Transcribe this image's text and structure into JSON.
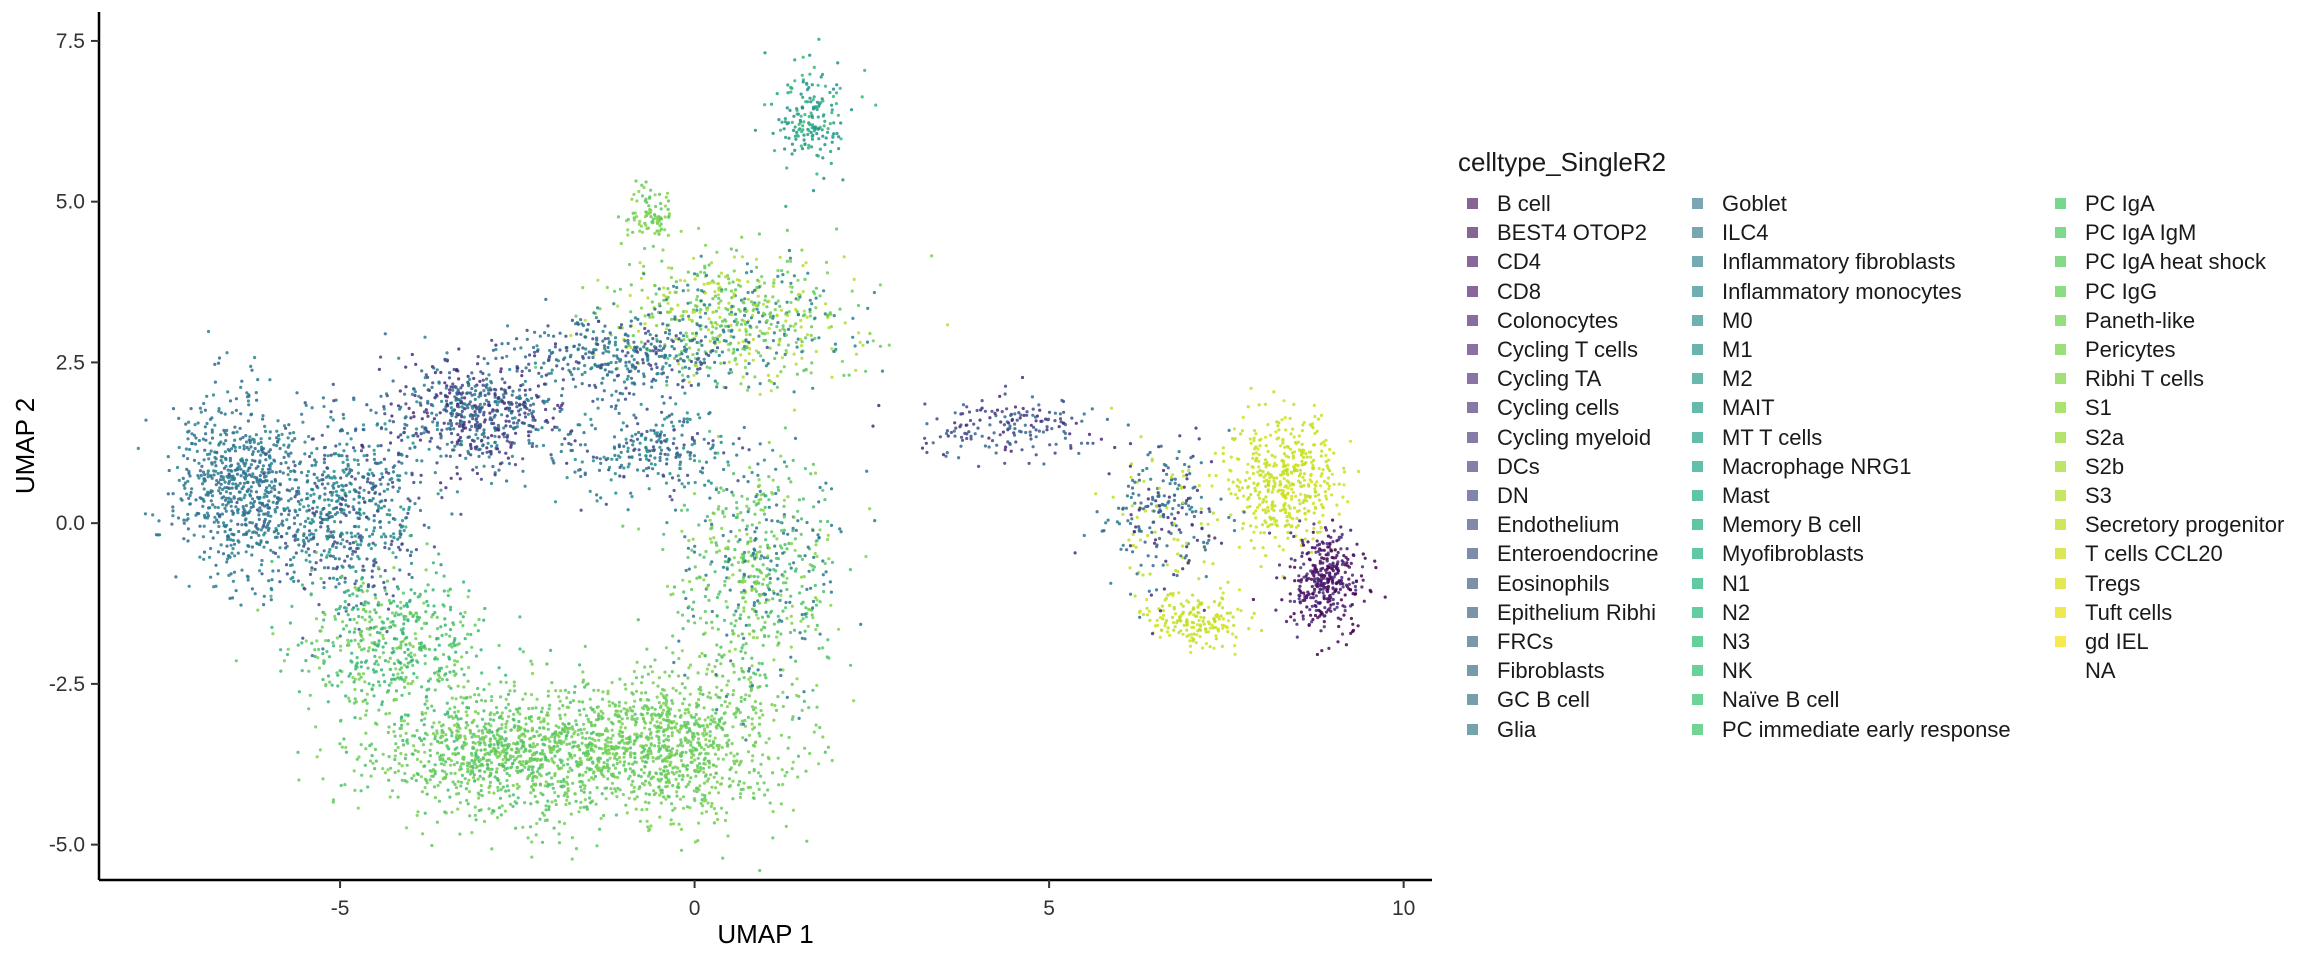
{
  "chart_data": {
    "type": "scatter",
    "xlabel": "UMAP 1",
    "ylabel": "UMAP 2",
    "xlim": [
      -8.4,
      10.4
    ],
    "ylim": [
      -5.55,
      7.95
    ],
    "x_ticks": [
      {
        "value": -5,
        "label": "-5"
      },
      {
        "value": 0,
        "label": "0"
      },
      {
        "value": 5,
        "label": "5"
      },
      {
        "value": 10,
        "label": "10"
      }
    ],
    "y_ticks": [
      {
        "value": -5,
        "label": "-5.0"
      },
      {
        "value": -2.5,
        "label": "-2.5"
      },
      {
        "value": 0,
        "label": "0.0"
      },
      {
        "value": 2.5,
        "label": "2.5"
      },
      {
        "value": 5,
        "label": "5.0"
      },
      {
        "value": 7.5,
        "label": "7.5"
      }
    ],
    "grid": false,
    "legend_position": "right",
    "legend_title": "celltype_SingleR2",
    "clusters": [
      {
        "center": [
          -6.4,
          0.6
        ],
        "spread": [
          0.75,
          1.1
        ],
        "colors": [
          "#26828e",
          "#2a788e",
          "#31688e"
        ],
        "weight": 0.08
      },
      {
        "center": [
          -4.9,
          0.2
        ],
        "spread": [
          0.9,
          1.2
        ],
        "colors": [
          "#2a788e",
          "#21908d",
          "#3e4a89"
        ],
        "weight": 0.07
      },
      {
        "center": [
          -3.1,
          1.7
        ],
        "spread": [
          1.0,
          0.7
        ],
        "colors": [
          "#31688e",
          "#26828e",
          "#472d7b",
          "#3e4a89"
        ],
        "weight": 0.07
      },
      {
        "center": [
          -2.5,
          -3.6
        ],
        "spread": [
          1.6,
          0.75
        ],
        "colors": [
          "#5ec962",
          "#6ece58",
          "#7ad151",
          "#4ac16d"
        ],
        "weight": 0.13
      },
      {
        "center": [
          -0.3,
          -3.4
        ],
        "spread": [
          1.3,
          1.0
        ],
        "colors": [
          "#5ec962",
          "#7ad151",
          "#6ece58"
        ],
        "weight": 0.1
      },
      {
        "center": [
          0.9,
          -0.9
        ],
        "spread": [
          0.9,
          1.5
        ],
        "colors": [
          "#5ec962",
          "#4ac16d",
          "#86d549",
          "#2a788e"
        ],
        "weight": 0.07
      },
      {
        "center": [
          -4.2,
          -1.9
        ],
        "spread": [
          1.1,
          0.9
        ],
        "colors": [
          "#3fbc73",
          "#5ec962",
          "#35b779",
          "#7ad151"
        ],
        "weight": 0.06
      },
      {
        "center": [
          0.6,
          3.2
        ],
        "spread": [
          1.4,
          0.8
        ],
        "colors": [
          "#5ec962",
          "#b5de2b",
          "#26828e",
          "#7ad151"
        ],
        "weight": 0.07
      },
      {
        "center": [
          -1.0,
          2.6
        ],
        "spread": [
          1.2,
          0.5
        ],
        "colors": [
          "#31688e",
          "#26828e",
          "#3e4a89"
        ],
        "weight": 0.04
      },
      {
        "center": [
          -0.6,
          1.1
        ],
        "spread": [
          1.0,
          0.6
        ],
        "colors": [
          "#2a788e",
          "#21908d",
          "#3e4a89"
        ],
        "weight": 0.03
      },
      {
        "center": [
          1.6,
          6.3
        ],
        "spread": [
          0.4,
          0.7
        ],
        "colors": [
          "#21a585",
          "#35b779",
          "#21908d"
        ],
        "weight": 0.02
      },
      {
        "center": [
          -0.6,
          4.8
        ],
        "spread": [
          0.3,
          0.3
        ],
        "colors": [
          "#86d549",
          "#5ec962"
        ],
        "weight": 0.01
      },
      {
        "center": [
          4.4,
          1.5
        ],
        "spread": [
          1.0,
          0.4
        ],
        "colors": [
          "#31688e",
          "#3e4a89",
          "#482878"
        ],
        "weight": 0.02
      },
      {
        "center": [
          8.3,
          0.7
        ],
        "spread": [
          0.6,
          0.8
        ],
        "colors": [
          "#bddf26",
          "#d2e21b",
          "#c8e020"
        ],
        "weight": 0.05
      },
      {
        "center": [
          8.9,
          -0.9
        ],
        "spread": [
          0.45,
          0.6
        ],
        "colors": [
          "#440154",
          "#472d7b",
          "#481467"
        ],
        "weight": 0.04
      },
      {
        "center": [
          7.1,
          -1.5
        ],
        "spread": [
          0.6,
          0.35
        ],
        "colors": [
          "#d2e21b",
          "#bddf26"
        ],
        "weight": 0.02
      },
      {
        "center": [
          6.6,
          0.2
        ],
        "spread": [
          0.7,
          0.9
        ],
        "colors": [
          "#31688e",
          "#472d7b",
          "#bddf26",
          "#2a788e"
        ],
        "weight": 0.03
      }
    ],
    "legend": [
      {
        "label": "B cell",
        "color": "#866593"
      },
      {
        "label": "BEST4 OTOP2",
        "color": "#866593"
      },
      {
        "label": "CD4",
        "color": "#88689a"
      },
      {
        "label": "CD8",
        "color": "#88689a"
      },
      {
        "label": "Colonocytes",
        "color": "#896d9f"
      },
      {
        "label": "Cycling T cells",
        "color": "#8a70a3"
      },
      {
        "label": "Cycling TA",
        "color": "#8a74a5"
      },
      {
        "label": "Cycling cells",
        "color": "#8878a6"
      },
      {
        "label": "Cycling myeloid",
        "color": "#877ca8"
      },
      {
        "label": "DCs",
        "color": "#8580a8"
      },
      {
        "label": "DN",
        "color": "#8384a9"
      },
      {
        "label": "Endothelium",
        "color": "#8188a9"
      },
      {
        "label": "Enteroendocrine",
        "color": "#7f8ca9"
      },
      {
        "label": "Eosinophils",
        "color": "#7d90a9"
      },
      {
        "label": "Epithelium Ribhi",
        "color": "#7c94aa"
      },
      {
        "label": "FRCs",
        "color": "#7a98aa"
      },
      {
        "label": "Fibroblasts",
        "color": "#789baa"
      },
      {
        "label": "GC B cell",
        "color": "#779faa"
      },
      {
        "label": "Glia",
        "color": "#75a3ab"
      },
      {
        "label": "Goblet",
        "color": "#7aa5b3"
      },
      {
        "label": "ILC4",
        "color": "#77a8b2"
      },
      {
        "label": "Inflammatory fibroblasts",
        "color": "#74abb1"
      },
      {
        "label": "Inflammatory monocytes",
        "color": "#71aeb0"
      },
      {
        "label": "M0",
        "color": "#6eb1af"
      },
      {
        "label": "M1",
        "color": "#6bb4ae"
      },
      {
        "label": "M2",
        "color": "#69b7ad"
      },
      {
        "label": "MAIT",
        "color": "#66baac"
      },
      {
        "label": "MT T cells",
        "color": "#64bdab"
      },
      {
        "label": "Macrophage NRG1",
        "color": "#62c0aa"
      },
      {
        "label": "Mast",
        "color": "#61c3a8"
      },
      {
        "label": "Memory B cell",
        "color": "#60c5a6"
      },
      {
        "label": "Myofibroblasts",
        "color": "#60c8a4"
      },
      {
        "label": "N1",
        "color": "#61caa2"
      },
      {
        "label": "N2",
        "color": "#63cd9f"
      },
      {
        "label": "N3",
        "color": "#66cf9c"
      },
      {
        "label": "NK",
        "color": "#69d199"
      },
      {
        "label": "Naïve B cell",
        "color": "#6dd396"
      },
      {
        "label": "PC  immediate early response",
        "color": "#72d593"
      },
      {
        "label": "PC IgA",
        "color": "#77d78f"
      },
      {
        "label": "PC IgA IgM",
        "color": "#7dd98b"
      },
      {
        "label": "PC IgA heat shock",
        "color": "#83db87"
      },
      {
        "label": "PC IgG",
        "color": "#8add83"
      },
      {
        "label": "Paneth-like",
        "color": "#92df7e"
      },
      {
        "label": "Pericytes",
        "color": "#9ae07a"
      },
      {
        "label": "Ribhi T cells",
        "color": "#a2e275"
      },
      {
        "label": "S1",
        "color": "#abe370"
      },
      {
        "label": "S2a",
        "color": "#b4e46b"
      },
      {
        "label": "S2b",
        "color": "#bde566"
      },
      {
        "label": "S3",
        "color": "#c7e661"
      },
      {
        "label": "Secretory progenitor",
        "color": "#d0e75c"
      },
      {
        "label": "T cells CCL20",
        "color": "#dae858"
      },
      {
        "label": "Tregs",
        "color": "#e4e854"
      },
      {
        "label": "Tuft cells",
        "color": "#eee951"
      },
      {
        "label": "gd IEL",
        "color": "#f7e94f"
      },
      {
        "label": "NA",
        "color": ""
      }
    ]
  }
}
